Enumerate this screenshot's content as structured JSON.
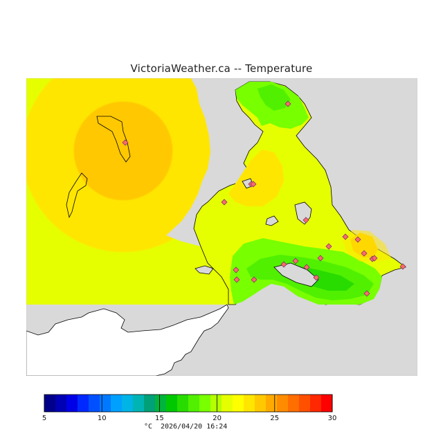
{
  "map": {
    "title": "VictoriaWeather.ca -- Temperature",
    "variable": "Temperature",
    "unit_symbol": "°C",
    "timestamp": "2026/04/20 16:24",
    "colors": {
      "sea_background": "#d9d9d9",
      "land_outside_domain": "#ffffff",
      "coastline": "#000000",
      "station_marker": "#ff6a6a"
    }
  },
  "colorbar": {
    "min": 5,
    "max": 30,
    "tick_values": [
      5,
      10,
      15,
      20,
      25,
      30
    ],
    "tick_labels": [
      "5",
      "10",
      "15",
      "20",
      "25",
      "30"
    ],
    "colors": [
      "#00008b",
      "#0000b4",
      "#0000e6",
      "#0028ff",
      "#0050ff",
      "#0078ff",
      "#00a0ff",
      "#00b4e6",
      "#00b4b4",
      "#00a078",
      "#00b43c",
      "#00c800",
      "#28dc00",
      "#50f000",
      "#78ff00",
      "#b4ff00",
      "#e6ff00",
      "#ffff00",
      "#ffe600",
      "#ffc800",
      "#ffaa00",
      "#ff8c00",
      "#ff6e00",
      "#ff5000",
      "#ff2800",
      "#ff0000"
    ]
  },
  "stations": {
    "count": 22,
    "note_visible": ""
  }
}
